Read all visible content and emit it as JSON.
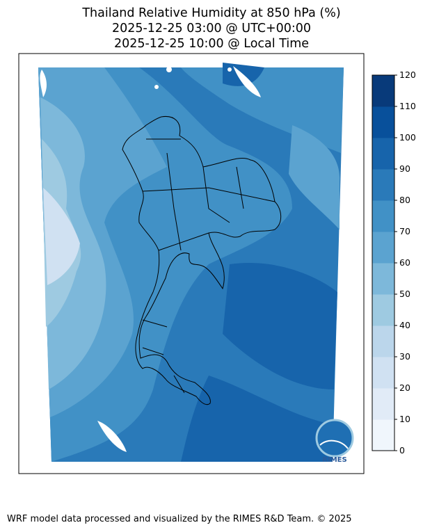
{
  "title": {
    "line1": "Thailand Relative Humidity at 850 hPa (%)",
    "line2": "2025-12-25 03:00 @ UTC+00:00",
    "line3": "2025-12-25 10:00 @ Local Time"
  },
  "colorbar": {
    "ticks": [
      "0",
      "10",
      "20",
      "30",
      "40",
      "50",
      "60",
      "70",
      "80",
      "90",
      "100",
      "110",
      "120"
    ],
    "colors": [
      "#f0f6fc",
      "#e1ebf7",
      "#d0e1f2",
      "#bbd6eb",
      "#9ecae1",
      "#7db8da",
      "#5ba3d0",
      "#4191c6",
      "#2a7ab9",
      "#1764ab",
      "#08509b",
      "#083a7a"
    ]
  },
  "logo": {
    "text": "RIMES"
  },
  "credit": "WRF model data processed and visualized by the RIMES R&D Team. © 2025"
}
